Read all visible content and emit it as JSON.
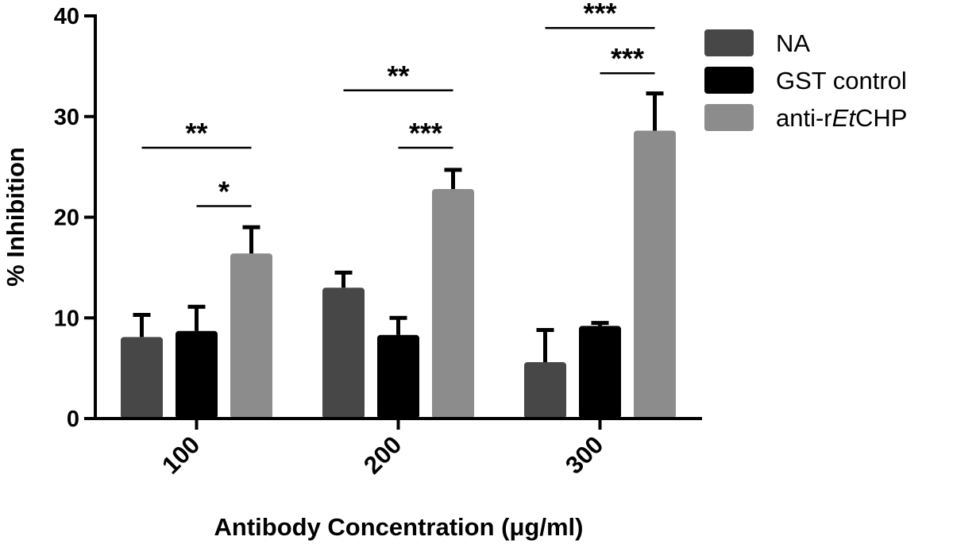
{
  "chart_data": {
    "type": "bar",
    "title": "",
    "xlabel": "Antibody Concentration (μg/ml)",
    "ylabel": "% Inhibition",
    "ylim": [
      0,
      40
    ],
    "yticks": [
      "0",
      "10",
      "20",
      "30",
      "40"
    ],
    "categories": [
      "100",
      "200",
      "300"
    ],
    "series": [
      {
        "name": "NA",
        "color": "#474747",
        "values": [
          8.1,
          13.0,
          5.6
        ],
        "errors": [
          2.2,
          1.5,
          3.2
        ]
      },
      {
        "name": "GST control",
        "color": "#000000",
        "values": [
          8.7,
          8.3,
          9.2
        ],
        "errors": [
          2.4,
          1.7,
          0.3
        ]
      },
      {
        "name": "anti-rEtCHP",
        "color": "#8c8c8c",
        "values": [
          16.4,
          22.8,
          28.6
        ],
        "errors": [
          2.6,
          1.9,
          3.7
        ]
      }
    ],
    "legend": {
      "position": "top-right",
      "labels": [
        {
          "pre": "NA",
          "ital": "",
          "post": ""
        },
        {
          "pre": "GST control",
          "ital": "",
          "post": ""
        },
        {
          "pre": "anti-r",
          "ital": "Et",
          "post": "CHP"
        }
      ]
    },
    "significance": [
      {
        "category": 0,
        "from": 0,
        "to": 2,
        "label": "**",
        "y": 26.9
      },
      {
        "category": 0,
        "from": 1,
        "to": 2,
        "label": "*",
        "y": 21.1
      },
      {
        "category": 1,
        "from": 0,
        "to": 2,
        "label": "**",
        "y": 32.6
      },
      {
        "category": 1,
        "from": 1,
        "to": 2,
        "label": "***",
        "y": 26.9
      },
      {
        "category": 2,
        "from": 0,
        "to": 2,
        "label": "***",
        "y": 38.8
      },
      {
        "category": 2,
        "from": 1,
        "to": 2,
        "label": "***",
        "y": 34.3
      }
    ]
  }
}
